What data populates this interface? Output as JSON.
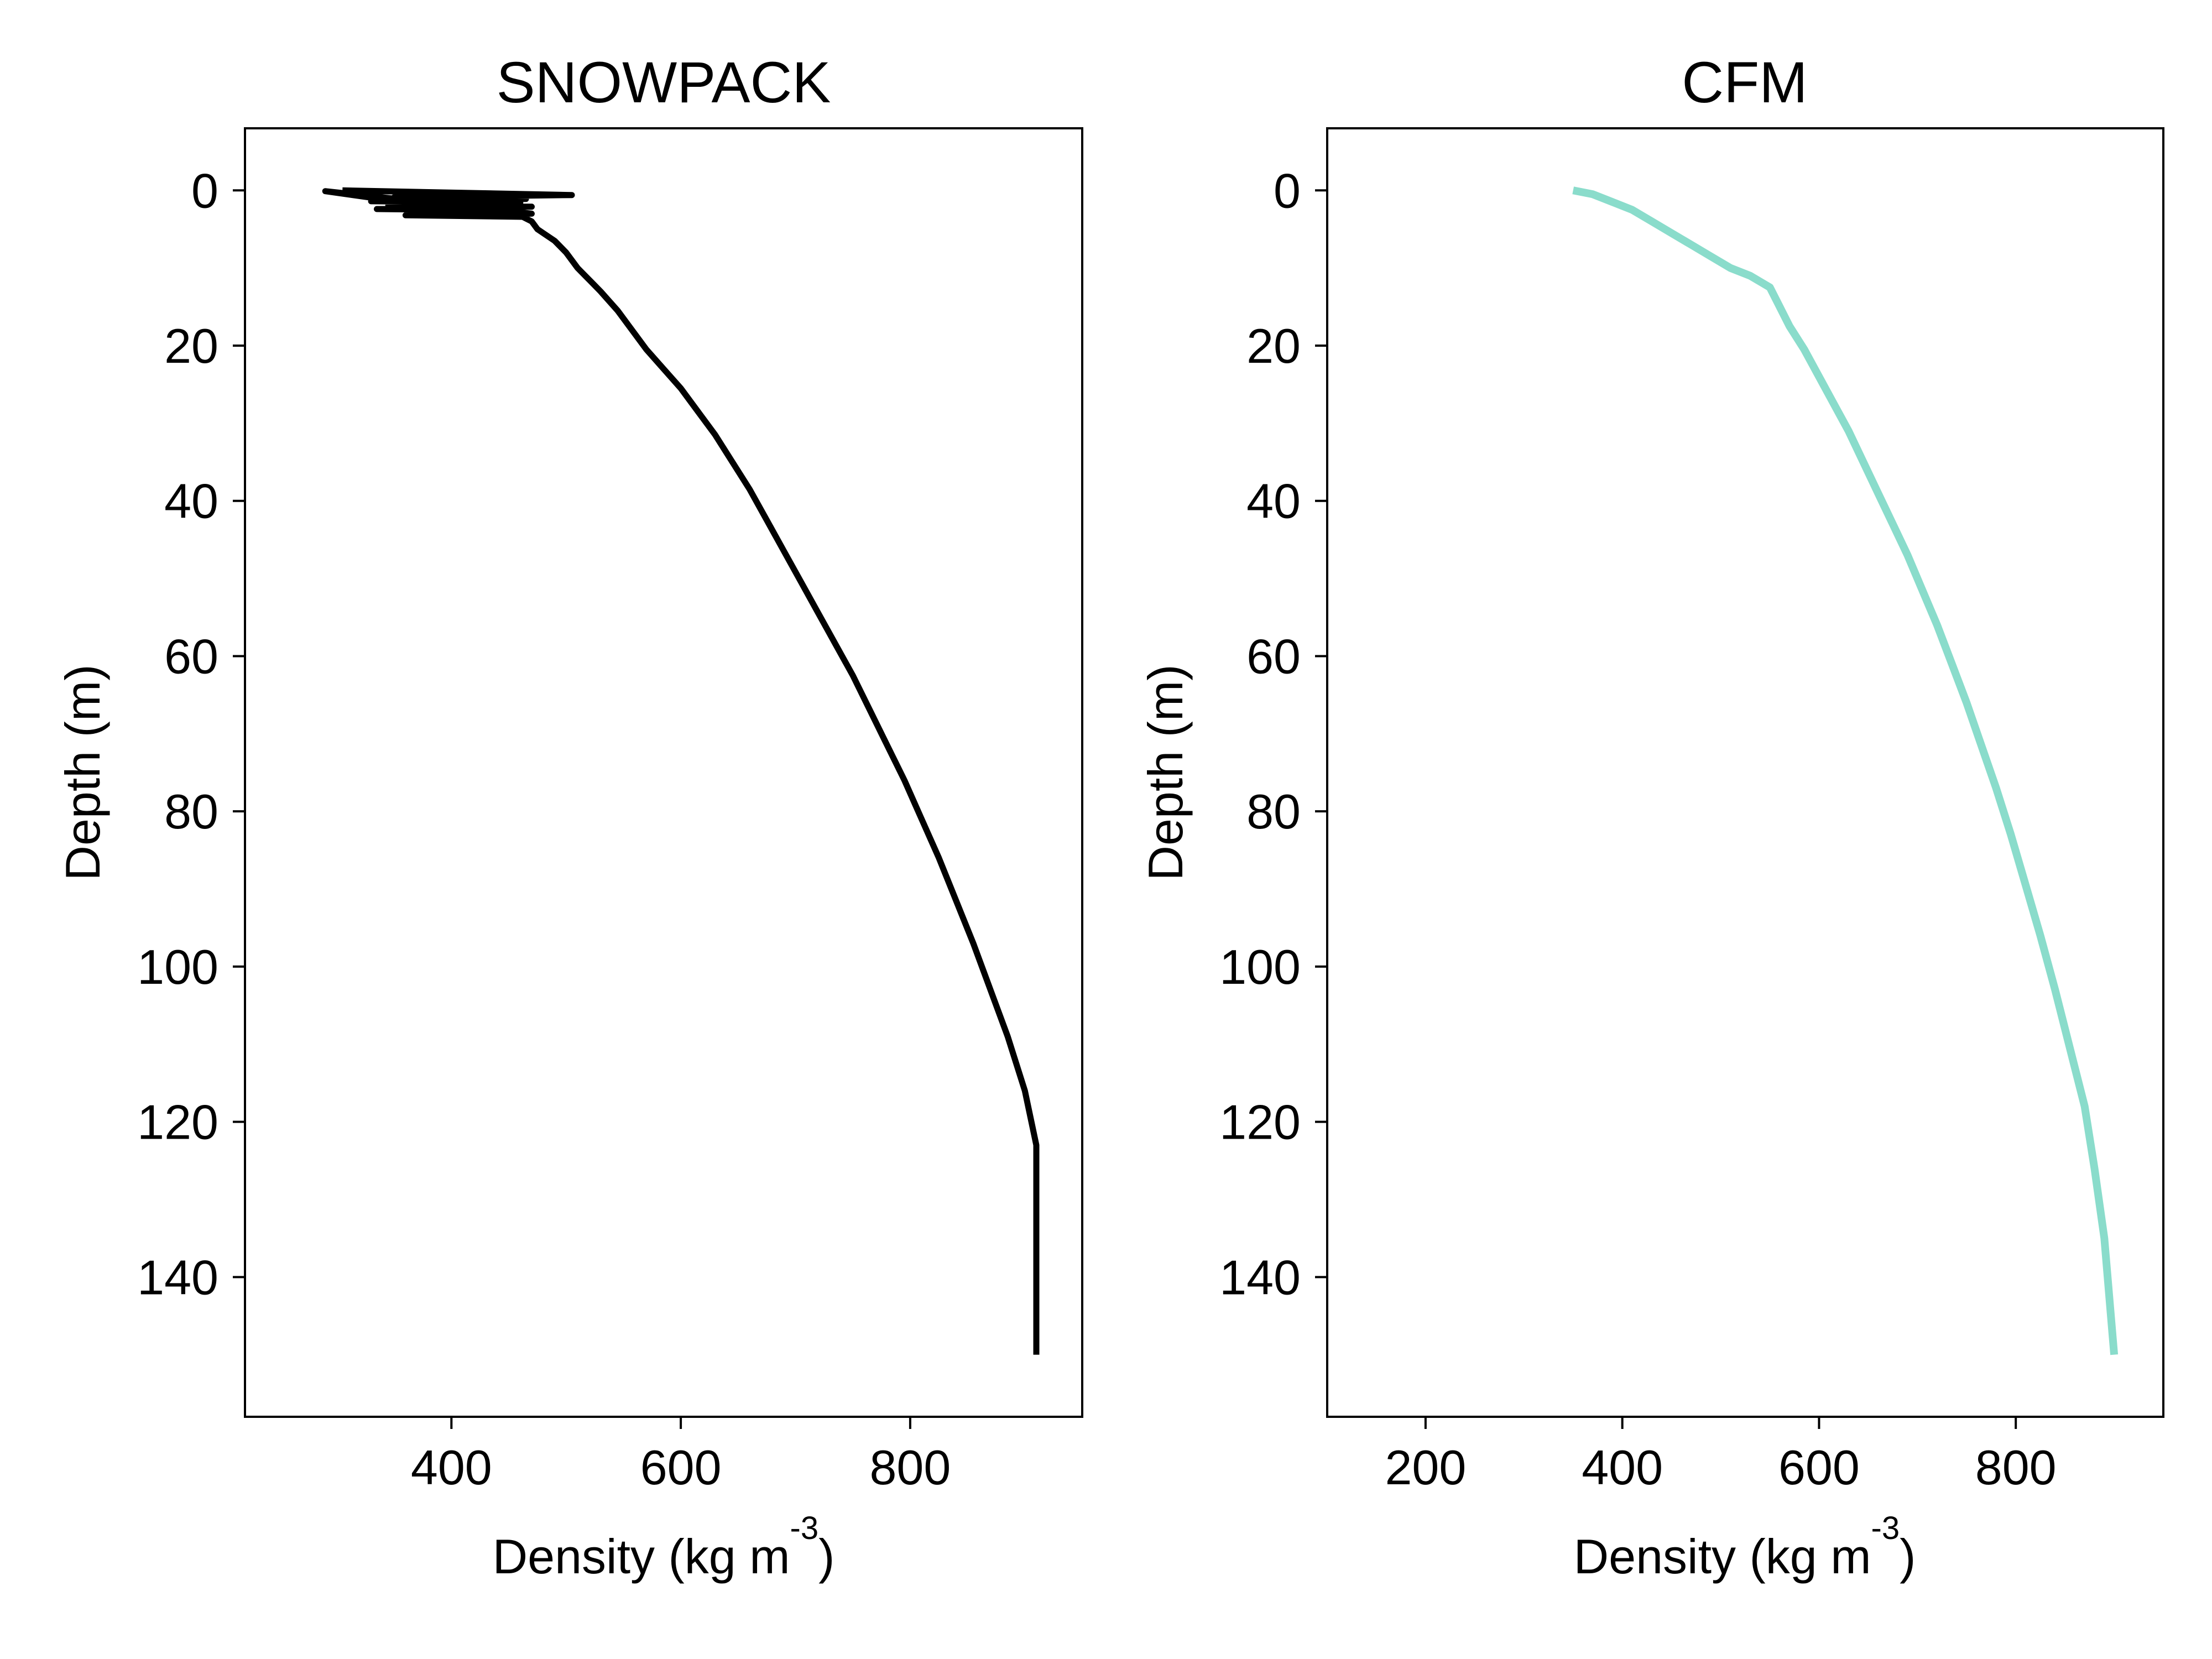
{
  "chart_data": [
    {
      "type": "line",
      "title": "SNOWPACK",
      "xlabel": "Density (kg m",
      "xlabel_superscript": "-3",
      "xlabel_suffix": ")",
      "ylabel": "Depth (m)",
      "xlim": [
        220,
        950
      ],
      "ylim": [
        158,
        -8
      ],
      "y_inverted": true,
      "grid": false,
      "line_color": "#000000",
      "xticks": [
        400,
        600,
        800
      ],
      "yticks": [
        0,
        20,
        40,
        60,
        80,
        100,
        120,
        140
      ],
      "series": [
        {
          "x": [
            305,
            505,
            350,
            465,
            330,
            460,
            345,
            470,
            335,
            455,
            420,
            290,
            470,
            360,
            462,
            470,
            475,
            490,
            500,
            510,
            520,
            530,
            545,
            560,
            570,
            585,
            600,
            615,
            630,
            645,
            660,
            675,
            690,
            705,
            720,
            735,
            750,
            765,
            780,
            795,
            810,
            825,
            840,
            855,
            870,
            885,
            900,
            910,
            910,
            910
          ],
          "y": [
            0.0,
            0.6,
            0.9,
            1.1,
            1.4,
            1.6,
            1.9,
            2.1,
            2.4,
            2.6,
            2.8,
            0.1,
            3.0,
            3.2,
            3.4,
            4.0,
            5.0,
            6.5,
            8.0,
            10.0,
            11.5,
            13.0,
            15.5,
            18.5,
            20.5,
            23.0,
            25.5,
            28.5,
            31.5,
            35.0,
            38.5,
            42.5,
            46.5,
            50.5,
            54.5,
            58.5,
            62.5,
            67.0,
            71.5,
            76.0,
            81.0,
            86.0,
            91.5,
            97.0,
            103.0,
            109.0,
            116.0,
            123.0,
            132.0,
            150.0
          ]
        }
      ]
    },
    {
      "type": "line",
      "title": "CFM",
      "xlabel": "Density (kg m",
      "xlabel_superscript": "-3",
      "xlabel_suffix": ")",
      "ylabel": "Depth (m)",
      "xlim": [
        100,
        950
      ],
      "ylim": [
        158,
        -8
      ],
      "y_inverted": true,
      "grid": false,
      "line_color": "#8adccb",
      "xticks": [
        200,
        400,
        600,
        800
      ],
      "yticks": [
        0,
        20,
        40,
        60,
        80,
        100,
        120,
        140
      ],
      "series": [
        {
          "x": [
            350,
            370,
            390,
            410,
            430,
            450,
            470,
            490,
            510,
            530,
            550,
            560,
            570,
            585,
            600,
            615,
            630,
            645,
            660,
            675,
            690,
            705,
            720,
            735,
            750,
            765,
            780,
            795,
            810,
            825,
            840,
            855,
            870,
            880,
            890,
            900
          ],
          "y": [
            0.0,
            0.5,
            1.5,
            2.5,
            4.0,
            5.5,
            7.0,
            8.5,
            10.0,
            11.0,
            12.5,
            15.0,
            17.5,
            20.5,
            24.0,
            27.5,
            31.0,
            35.0,
            39.0,
            43.0,
            47.0,
            51.5,
            56.0,
            61.0,
            66.0,
            71.5,
            77.0,
            83.0,
            89.5,
            96.0,
            103.0,
            110.5,
            118.0,
            126.0,
            135.0,
            150.0
          ]
        }
      ]
    }
  ]
}
